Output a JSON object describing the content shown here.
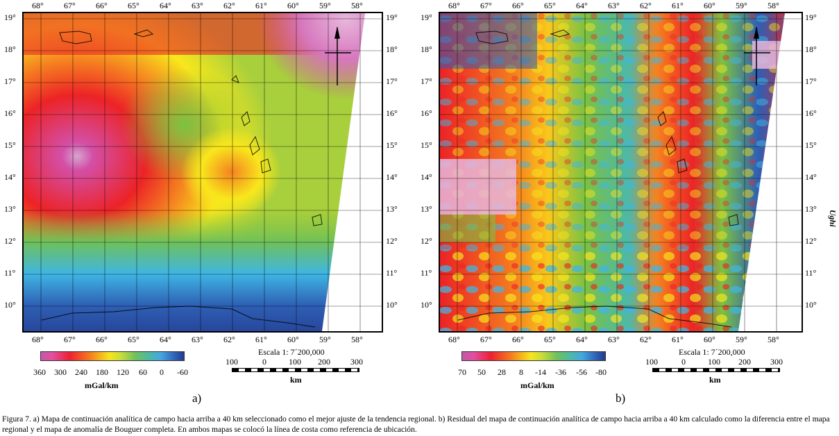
{
  "panels": [
    {
      "id": "a",
      "lon_labels": [
        "68°",
        "67°",
        "66°",
        "65°",
        "64°",
        "63°",
        "62°",
        "61°",
        "60°",
        "59°",
        "58°"
      ],
      "lat_labels": [
        "19°",
        "18°",
        "17°",
        "16°",
        "15°",
        "14°",
        "13°",
        "12°",
        "11°",
        "10°"
      ],
      "colorbar": {
        "ticks": [
          "360",
          "300",
          "240",
          "180",
          "120",
          "60",
          "0",
          "-60"
        ],
        "unit": "mGal/km"
      },
      "scale": {
        "title": "Escala 1: 7´200,000",
        "ticks": [
          "100",
          "0",
          "100",
          "200",
          "300"
        ],
        "unit": "km"
      },
      "letter": "a)"
    },
    {
      "id": "b",
      "lon_labels": [
        "68°",
        "67°",
        "66°",
        "65°",
        "64°",
        "63°",
        "62°",
        "61°",
        "60°",
        "59°",
        "58°"
      ],
      "lat_labels": [
        "19°",
        "18°",
        "17°",
        "16°",
        "15°",
        "14°",
        "13°",
        "12°",
        "11°",
        "10°"
      ],
      "colorbar": {
        "ticks": [
          "70",
          "50",
          "28",
          "8",
          "-14",
          "-36",
          "-56",
          "-80"
        ],
        "unit": "mGal/km"
      },
      "scale": {
        "title": "Escala 1: 7´200,000",
        "ticks": [
          "100",
          "0",
          "100",
          "200",
          "300"
        ],
        "unit": "km"
      },
      "letter": "b)"
    }
  ],
  "side_label": "Ughi",
  "caption": "Figura 7. a) Mapa de continuación analítica de campo hacia arriba a 40 km seleccionado como el mejor ajuste de la tendencia regional. b) Residual del mapa de continuación analítica de campo hacia arriba a 40 km calculado como la diferencia entre el mapa regional y el mapa de anomalía de Bouguer completa. En ambos mapas se colocó la línea de costa como referencia de ubicación.",
  "colors": {
    "magenta": "#d34fa7",
    "red": "#ec2326",
    "orange": "#f58220",
    "yellow": "#f8e71c",
    "green": "#7cc242",
    "cyan": "#3fb6e3",
    "blue": "#27479b"
  }
}
